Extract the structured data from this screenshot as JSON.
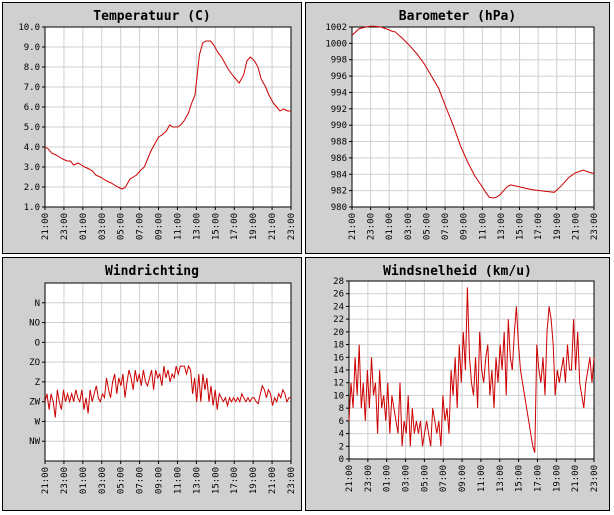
{
  "chart_data": [
    {
      "type": "line",
      "title": "Temperatuur (C)",
      "xlabel": "",
      "ylabel": "",
      "ylim": [
        1.0,
        10.0
      ],
      "yticks": [
        "1.0",
        "2.0",
        "3.0",
        "4.0",
        "5.0",
        "6.0",
        "7.0",
        "8.0",
        "9.0",
        "10.0"
      ],
      "xticks": [
        "21:00",
        "23:00",
        "01:00",
        "03:00",
        "05:00",
        "07:00",
        "09:00",
        "11:00",
        "13:00",
        "15:00",
        "17:00",
        "19:00",
        "21:00",
        "23:00"
      ],
      "color": "#cc0000",
      "series": [
        {
          "name": "Temperatuur",
          "x": [
            0,
            0.3,
            0.6,
            1,
            1.3,
            1.6,
            2,
            2.3,
            2.6,
            3,
            3.3,
            3.6,
            4,
            4.3,
            4.6,
            5,
            5.3,
            5.6,
            6,
            6.3,
            6.6,
            7,
            7.3,
            7.5,
            7.7,
            8,
            8.3,
            8.6,
            9,
            9.3,
            9.6,
            10,
            10.3,
            10.6,
            11,
            11.3,
            11.6,
            12,
            12.3,
            12.6,
            13,
            13.3,
            13.6,
            14,
            14.3,
            14.6,
            15,
            15.3,
            15.5,
            15.7,
            16,
            16.3,
            16.6,
            17,
            17.3,
            17.6,
            18,
            18.3,
            18.6,
            19,
            19.3,
            19.6,
            20,
            20.3,
            20.5,
            20.7,
            21,
            21.3,
            21.6,
            22,
            22.3
          ],
          "values": [
            4.0,
            3.9,
            3.7,
            3.6,
            3.5,
            3.4,
            3.3,
            3.3,
            3.1,
            3.2,
            3.1,
            3.0,
            2.9,
            2.8,
            2.6,
            2.5,
            2.4,
            2.3,
            2.2,
            2.1,
            2.0,
            1.9,
            2.0,
            2.2,
            2.4,
            2.5,
            2.6,
            2.8,
            3.0,
            3.4,
            3.8,
            4.2,
            4.5,
            4.6,
            4.8,
            5.1,
            5.0,
            5.0,
            5.1,
            5.3,
            5.7,
            6.2,
            6.6,
            8.6,
            9.2,
            9.3,
            9.3,
            9.1,
            8.9,
            8.7,
            8.5,
            8.2,
            7.9,
            7.6,
            7.4,
            7.2,
            7.6,
            8.3,
            8.5,
            8.3,
            8.0,
            7.4,
            7.0,
            6.6,
            6.4,
            6.2,
            6.0,
            5.8,
            5.9,
            5.8,
            5.8
          ]
        }
      ]
    },
    {
      "type": "line",
      "title": "Barometer (hPa)",
      "xlabel": "",
      "ylabel": "",
      "ylim": [
        980,
        1002
      ],
      "yticks": [
        "980",
        "982",
        "984",
        "986",
        "988",
        "990",
        "992",
        "994",
        "996",
        "998",
        "1000",
        "1002"
      ],
      "xticks": [
        "21:00",
        "23:00",
        "01:00",
        "03:00",
        "05:00",
        "07:00",
        "09:00",
        "11:00",
        "13:00",
        "15:00",
        "17:00",
        "19:00",
        "21:00",
        "23:00"
      ],
      "color": "#cc0000",
      "series": [
        {
          "name": "Barometer",
          "x": [
            0,
            1,
            2,
            2.5,
            3,
            4,
            5,
            5.5,
            6,
            6.5,
            7,
            8,
            9,
            10,
            11,
            12,
            13,
            14,
            15,
            16,
            17,
            18,
            18.5,
            19,
            19.5,
            20,
            20.5,
            21,
            21.5,
            22,
            22.5,
            23,
            23.5,
            24,
            25,
            26,
            27,
            28,
            29,
            30,
            31,
            32,
            33,
            33.5
          ],
          "values": [
            1001.0,
            1001.8,
            1002.0,
            1002.1,
            1002.1,
            1002.0,
            1001.7,
            1001.5,
            1001.4,
            1001.0,
            1000.6,
            999.7,
            998.7,
            997.5,
            996.0,
            994.5,
            992.2,
            990.0,
            987.5,
            985.5,
            983.8,
            982.5,
            981.8,
            981.2,
            981.1,
            981.2,
            981.5,
            982.0,
            982.5,
            982.7,
            982.6,
            982.5,
            982.4,
            982.3,
            982.1,
            982.0,
            981.9,
            981.8,
            982.6,
            983.6,
            984.2,
            984.5,
            984.2,
            984.1
          ]
        }
      ]
    },
    {
      "type": "line",
      "title": "Windrichting",
      "xlabel": "",
      "ylabel": "",
      "ylim": [
        0,
        8
      ],
      "yticks": [
        "NW",
        "W",
        "ZW",
        "Z",
        "ZO",
        "O",
        "NO",
        "N"
      ],
      "xticks": [
        "21:00",
        "23:00",
        "01:00",
        "03:00",
        "05:00",
        "07:00",
        "09:00",
        "11:00",
        "13:00",
        "15:00",
        "17:00",
        "19:00",
        "21:00",
        "23:00"
      ],
      "color": "#cc0000",
      "series": [
        {
          "name": "Windrichting",
          "x": [
            0,
            0.4,
            0.8,
            1.2,
            1.6,
            2,
            2.4,
            2.8,
            3.2,
            3.6,
            4,
            4.4,
            4.8,
            5.2,
            5.6,
            6,
            6.4,
            6.8,
            7.2,
            7.6,
            8,
            8.4,
            8.8,
            9.2,
            9.6,
            10,
            10.4,
            10.8,
            11.2,
            11.6,
            12,
            12.4,
            12.8,
            13.2,
            13.6,
            14,
            14.4,
            14.8,
            15.2,
            15.6,
            16,
            16.4,
            16.8,
            17.2,
            17.6,
            18,
            18.4,
            18.8,
            19.2,
            19.6,
            20,
            20.4,
            20.8,
            21.2,
            21.6,
            22,
            22.4,
            22.8,
            23.2,
            23.6,
            24,
            24.4,
            24.8,
            25.2,
            25.6,
            26,
            26.4,
            26.8,
            27.2,
            27.6,
            28,
            28.4,
            28.8,
            29.2,
            29.6,
            30,
            30.4,
            30.8,
            31.2,
            31.6,
            32,
            32.4,
            32.8,
            33.2,
            33.6,
            34,
            34.4,
            34.8,
            35.2,
            35.6,
            36,
            36.4,
            36.8,
            37.2,
            37.6,
            38,
            38.4,
            38.8,
            39.2,
            39.6,
            40,
            40.4,
            40.8,
            41.2,
            41.6,
            42,
            42.4,
            42.8,
            43.2,
            43.6,
            44,
            44.4,
            44.8,
            45.2,
            45.6,
            46,
            46.4,
            46.8,
            47.2,
            47.6,
            48
          ],
          "values": [
            3.0,
            3.4,
            2.6,
            3.4,
            3.0,
            2.2,
            3.6,
            3.0,
            2.6,
            3.6,
            3.0,
            3.4,
            3.0,
            3.4,
            3.0,
            3.6,
            3.2,
            3.0,
            3.6,
            2.6,
            3.2,
            2.4,
            3.6,
            3.0,
            3.4,
            3.8,
            3.2,
            3.0,
            3.4,
            3.2,
            4.2,
            3.6,
            3.2,
            4.0,
            4.4,
            3.4,
            4.2,
            3.8,
            4.4,
            3.2,
            4.0,
            4.6,
            4.2,
            3.6,
            4.6,
            4.0,
            4.4,
            3.8,
            4.6,
            4.0,
            3.8,
            4.2,
            4.6,
            3.6,
            4.6,
            4.2,
            4.4,
            3.8,
            4.8,
            4.2,
            4.6,
            4.0,
            4.4,
            4.2,
            4.8,
            4.4,
            4.8,
            4.8,
            4.8,
            4.4,
            4.8,
            4.6,
            3.4,
            4.2,
            3.0,
            4.4,
            3.0,
            4.4,
            3.6,
            4.2,
            3.0,
            3.8,
            2.8,
            3.6,
            2.6,
            3.4,
            3.2,
            3.0,
            3.2,
            2.8,
            3.2,
            3.0,
            3.2,
            3.0,
            3.2,
            3.0,
            3.4,
            3.2,
            3.0,
            3.2,
            3.0,
            3.2,
            3.2,
            3.0,
            2.9,
            3.4,
            3.8,
            3.6,
            3.2,
            3.6,
            3.4,
            2.8,
            3.2,
            3.0,
            3.4,
            3.2,
            3.6,
            3.4,
            3.0,
            3.2,
            3.2
          ]
        }
      ]
    },
    {
      "type": "line",
      "title": "Windsnelheid (km/u)",
      "xlabel": "",
      "ylabel": "",
      "ylim": [
        0,
        28
      ],
      "yticks": [
        "0",
        "2",
        "4",
        "6",
        "8",
        "10",
        "12",
        "14",
        "16",
        "18",
        "20",
        "22",
        "24",
        "26",
        "28"
      ],
      "xticks": [
        "21:00",
        "23:00",
        "01:00",
        "03:00",
        "05:00",
        "07:00",
        "09:00",
        "11:00",
        "13:00",
        "15:00",
        "17:00",
        "19:00",
        "21:00",
        "23:00"
      ],
      "color": "#cc0000",
      "series": [
        {
          "name": "Windsnelheid",
          "x": [
            0,
            0.4,
            0.8,
            1.2,
            1.6,
            2,
            2.4,
            2.8,
            3.2,
            3.6,
            4,
            4.4,
            4.8,
            5.2,
            5.6,
            6,
            6.4,
            6.8,
            7.2,
            7.6,
            8,
            8.4,
            8.8,
            9.2,
            9.6,
            10,
            10.4,
            10.8,
            11.2,
            11.6,
            12,
            12.4,
            12.8,
            13.2,
            13.6,
            14,
            14.4,
            14.8,
            15.2,
            15.6,
            16,
            16.4,
            16.8,
            17.2,
            17.6,
            18,
            18.4,
            18.8,
            19.2,
            19.6,
            20,
            20.4,
            20.8,
            21.2,
            21.6,
            22,
            22.4,
            22.8,
            23.2,
            23.6,
            24,
            24.4,
            24.8,
            25.2,
            25.6,
            26,
            26.4,
            26.8,
            27.2,
            27.6,
            28,
            28.4,
            28.8,
            29.2,
            29.6,
            30,
            30.4,
            30.8,
            31.2,
            31.6,
            32,
            32.4,
            32.8,
            33.2,
            33.6,
            34,
            34.4,
            34.8,
            35.2,
            35.6,
            36,
            36.4,
            36.8,
            37.2,
            37.6,
            38,
            38.4,
            38.8,
            39.2,
            39.6,
            40,
            40.4,
            40.8,
            41.2,
            41.6,
            42,
            42.4,
            42.8,
            43.2,
            43.6,
            44,
            44.4,
            44.8,
            45.2,
            45.6,
            46,
            46.4,
            46.8,
            47.2,
            47.6,
            48
          ],
          "values": [
            6,
            12,
            8,
            16,
            10,
            18,
            8,
            12,
            6,
            14,
            8,
            16,
            10,
            12,
            4,
            14,
            8,
            10,
            6,
            12,
            4,
            10,
            8,
            6,
            4,
            12,
            2,
            6,
            4,
            10,
            2,
            8,
            4,
            6,
            4,
            6,
            2,
            4,
            6,
            4,
            2,
            8,
            6,
            4,
            6,
            2,
            10,
            6,
            8,
            4,
            14,
            10,
            16,
            8,
            18,
            12,
            20,
            14,
            27,
            16,
            12,
            10,
            16,
            8,
            20,
            14,
            12,
            16,
            18,
            10,
            14,
            8,
            16,
            12,
            18,
            14,
            20,
            10,
            22,
            16,
            14,
            20,
            24,
            18,
            14,
            12,
            10,
            8,
            6,
            4,
            2,
            1,
            18,
            14,
            12,
            16,
            10,
            20,
            24,
            22,
            18,
            10,
            14,
            12,
            14,
            16,
            12,
            18,
            14,
            14,
            22,
            14,
            20,
            12,
            10,
            8,
            12,
            14,
            16,
            12,
            16
          ]
        }
      ]
    }
  ]
}
